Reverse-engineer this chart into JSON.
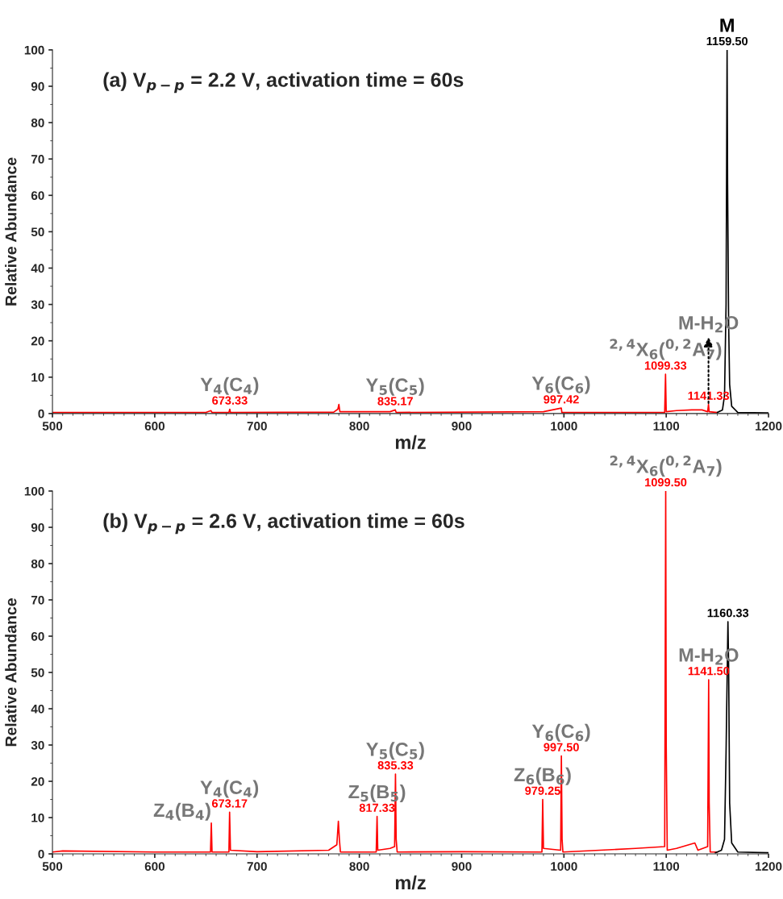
{
  "chart_data": [
    {
      "type": "line",
      "title": "(a) V$_{p−p}$ = 2.2 V, activation time = 60s",
      "xlabel": "m/z",
      "ylabel": "Relative Abundance",
      "xlim": [
        500,
        1200
      ],
      "xticks": [
        500,
        600,
        700,
        800,
        900,
        1000,
        1100,
        1200
      ],
      "ylim": [
        0,
        100
      ],
      "yticks": [
        0,
        10,
        20,
        30,
        40,
        50,
        60,
        70,
        80,
        90,
        100
      ],
      "grid": false,
      "series": [
        {
          "color": "#ff0000",
          "x": [
            500,
            650,
            655,
            656,
            672.5,
            673.33,
            674,
            775,
            779,
            780,
            781,
            830,
            835.17,
            836,
            980,
            997.42,
            998,
            1098.5,
            1099.33,
            1100,
            1110,
            1125,
            1135,
            1140.5,
            1141.33,
            1142,
            1150
          ],
          "values": [
            0.3,
            0.3,
            0.8,
            0.3,
            0.3,
            1.2,
            0.3,
            0.4,
            1.2,
            2.5,
            0.5,
            0.5,
            1.0,
            0.3,
            0.5,
            1.5,
            0.3,
            0.3,
            10.8,
            0.5,
            0.8,
            1.0,
            1.0,
            0.5,
            2.5,
            0.5,
            0.3
          ]
        },
        {
          "color": "#000000",
          "x": [
            1150,
            1155,
            1157,
            1158.5,
            1159.5,
            1160,
            1161,
            1162,
            1164,
            1170,
            1200
          ],
          "values": [
            0.3,
            1,
            5,
            30,
            100,
            63,
            25,
            8,
            2,
            0.3,
            0.2
          ]
        }
      ],
      "annotations": [
        {
          "text": "673.33",
          "x": 673.33,
          "y": 1.2
        },
        {
          "text": "Y$_{4}$(C$_{4}$)",
          "x": 673.33,
          "y": 1.2
        },
        {
          "text": "835.17",
          "x": 835.17,
          "y": 1.0
        },
        {
          "text": "Y$_{5}$(C$_{5}$)",
          "x": 835.17,
          "y": 1.0
        },
        {
          "text": "997.42",
          "x": 997.42,
          "y": 1.5
        },
        {
          "text": "Y$_{6}$(C$_{6}$)",
          "x": 997.42,
          "y": 1.5
        },
        {
          "text": "1099.33",
          "x": 1099.33,
          "y": 10.8
        },
        {
          "text": "$^{2,4}$X$_{6}$($^{0,2}$A$_{7}$)",
          "x": 1099.33,
          "y": 10.8
        },
        {
          "text": "1141.33",
          "x": 1141.33,
          "y": 2.5
        },
        {
          "text": "M-H$_{2}$O",
          "x": 1141.33,
          "y": 2.5
        },
        {
          "text": "1159.50",
          "x": 1159.5,
          "y": 100
        },
        {
          "text": "M",
          "x": 1159.5,
          "y": 100
        }
      ]
    },
    {
      "type": "line",
      "title": "(b) V$_{p−p}$ = 2.6 V, activation time = 60s",
      "xlabel": "m/z",
      "ylabel": "Relative Abundance",
      "xlim": [
        500,
        1200
      ],
      "xticks": [
        500,
        600,
        700,
        800,
        900,
        1000,
        1100,
        1200
      ],
      "ylim": [
        0,
        100
      ],
      "yticks": [
        0,
        10,
        20,
        30,
        40,
        50,
        60,
        70,
        80,
        90,
        100
      ],
      "grid": false,
      "series": [
        {
          "color": "#ff0000",
          "x": [
            500,
            510,
            600,
            654.5,
            655.3,
            656,
            672.5,
            673.17,
            674,
            700,
            770,
            778,
            779.5,
            780.5,
            781.5,
            816.5,
            817.33,
            818,
            830,
            834.5,
            835.33,
            836,
            837,
            900,
            978.5,
            979.25,
            980,
            996.8,
            997.5,
            998.2,
            999,
            1070,
            1098.5,
            1099.5,
            1100,
            1101,
            1110,
            1128,
            1131,
            1140.5,
            1141.5,
            1142,
            1143,
            1150
          ],
          "values": [
            0.5,
            0.8,
            0.5,
            0.5,
            8.5,
            0.5,
            0.5,
            11.5,
            1,
            0.6,
            1,
            2.5,
            9,
            4,
            0.5,
            0.5,
            10.3,
            1,
            1.5,
            2,
            22,
            4,
            0.5,
            0.6,
            0.5,
            15,
            1.5,
            1,
            27,
            4,
            0.5,
            1.5,
            2,
            100,
            30,
            1,
            1.5,
            3,
            1,
            2,
            48,
            14,
            0.5,
            0.5
          ]
        },
        {
          "color": "#000000",
          "x": [
            1148,
            1154,
            1157,
            1158.5,
            1160.33,
            1161,
            1162,
            1164,
            1170,
            1200
          ],
          "values": [
            0.3,
            1,
            4,
            28,
            64,
            52,
            14,
            3,
            0.5,
            0.3
          ]
        }
      ],
      "annotations": [
        {
          "text": "Z$_{4}$(B$_{4}$)",
          "x": 655.3,
          "y": 8.5
        },
        {
          "text": "673.17",
          "x": 673.17,
          "y": 11.5
        },
        {
          "text": "Y$_{4}$(C$_{4}$)",
          "x": 673.17,
          "y": 11.5
        },
        {
          "text": "817.33",
          "x": 817.33,
          "y": 10.3
        },
        {
          "text": "Z$_{5}$(B$_{5}$)",
          "x": 817.33,
          "y": 10.3
        },
        {
          "text": "835.33",
          "x": 835.33,
          "y": 22
        },
        {
          "text": "Y$_{5}$(C$_{5}$)",
          "x": 835.33,
          "y": 22
        },
        {
          "text": "979.25",
          "x": 979.25,
          "y": 15
        },
        {
          "text": "Z$_{6}$(B$_{6}$)",
          "x": 979.25,
          "y": 15
        },
        {
          "text": "997.50",
          "x": 997.5,
          "y": 27
        },
        {
          "text": "Y$_{6}$(C$_{6}$)",
          "x": 997.5,
          "y": 27
        },
        {
          "text": "1099.50",
          "x": 1099.5,
          "y": 100
        },
        {
          "text": "$^{2,4}$X$_{6}$($^{0,2}$A$_{7}$)",
          "x": 1099.5,
          "y": 100
        },
        {
          "text": "1141.50",
          "x": 1141.5,
          "y": 48
        },
        {
          "text": "M-H$_{2}$O",
          "x": 1141.5,
          "y": 48
        },
        {
          "text": "1160.33",
          "x": 1160.33,
          "y": 64
        }
      ]
    }
  ]
}
